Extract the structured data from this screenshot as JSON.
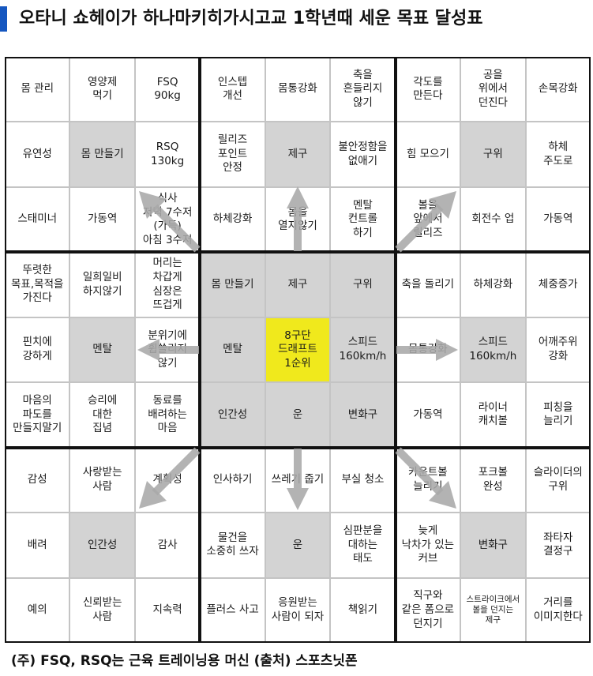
{
  "title": "오타니 쇼헤이가 하나마키히가시고교 1학년때 세운 목표 달성표",
  "footnote": "(주) FSQ, RSQ는 근육 트레이닝용 머신 (출처) 스포츠닛폰",
  "colors": {
    "accent": "#1557c0",
    "center": "#f0e91c",
    "gray": "#d3d3d3",
    "arrow": "#a9a9a9"
  },
  "cells": [
    [
      "몸 관리",
      "영양제\n먹기",
      "FSQ\n90kg",
      "인스텝\n개선",
      "몸통강화",
      "축을\n흔들리지\n않기",
      "각도를\n만든다",
      "공을\n위에서\n던진다",
      "손목강화"
    ],
    [
      "유연성",
      "몸 만들기",
      "RSQ\n130kg",
      "릴리즈\n포인트\n안정",
      "제구",
      "불안정함을\n없애기",
      "힘 모으기",
      "구위",
      "하체\n주도로"
    ],
    [
      "스태미너",
      "가동역",
      "식사\n저녁 7수저\n(가득)\n아침 3수저",
      "하체강화",
      "몸을\n열지않기",
      "멘탈\n컨트롤\n하기",
      "볼을\n앞에서\n릴리즈",
      "회전수 업",
      "가동역"
    ],
    [
      "뚜렷한\n목표,목적을\n가진다",
      "일희일비\n하지않기",
      "머리는\n차갑게\n심장은\n뜨겁게",
      "몸 만들기",
      "제구",
      "구위",
      "축을 돌리기",
      "하체강화",
      "체중증가"
    ],
    [
      "핀치에\n강하게",
      "멘탈",
      "분위기에\n휩쓸리지\n않기",
      "멘탈",
      "8구단\n드래프트\n1순위",
      "스피드\n160km/h",
      "몸통강화",
      "스피드\n160km/h",
      "어깨주위\n강화"
    ],
    [
      "마음의\n파도를\n만들지말기",
      "승리에\n대한\n집념",
      "동료를\n배려하는\n마음",
      "인간성",
      "운",
      "변화구",
      "가동역",
      "라이너\n캐치볼",
      "피칭을\n늘리기"
    ],
    [
      "감성",
      "사랑받는\n사람",
      "계획성",
      "인사하기",
      "쓰레기 줍기",
      "부실 청소",
      "카운트볼\n늘리기",
      "포크볼\n완성",
      "슬라이더의\n구위"
    ],
    [
      "배려",
      "인간성",
      "감사",
      "물건을\n소중히 쓰자",
      "운",
      "심판분을\n대하는\n태도",
      "늦게\n낙차가 있는\n커브",
      "변화구",
      "좌타자\n결정구"
    ],
    [
      "예의",
      "신뢰받는\n사람",
      "지속력",
      "플러스 사고",
      "응원받는\n사람이 되자",
      "책읽기",
      "직구와\n같은 폼으로\n던지기",
      "스트라이크에서\n볼을 던지는\n제구",
      "거리를\n이미지한다"
    ]
  ]
}
